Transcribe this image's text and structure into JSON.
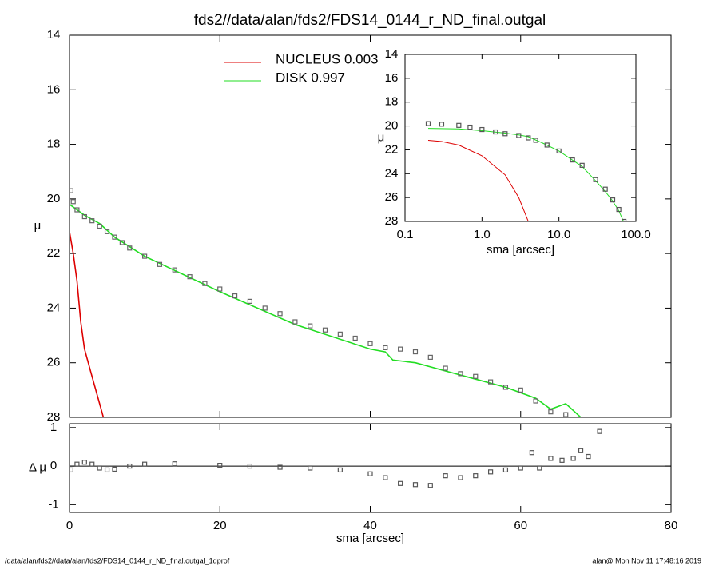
{
  "title": "fds2//data/alan/fds2/FDS14_0144_r_ND_final.outgal",
  "footer_left": "/data/alan/fds2//data/alan/fds2/FDS14_0144_r_ND_final.outgal_1dprof",
  "footer_right": "alan@  Mon Nov 11 17:48:16 2019",
  "chart_data": [
    {
      "type": "line",
      "ylabel": "μ",
      "xlim": [
        0,
        80
      ],
      "ylim": [
        14,
        28
      ],
      "y_inverted": true,
      "yticks": [
        14,
        16,
        18,
        20,
        22,
        24,
        26,
        28
      ],
      "series": [
        {
          "name": "NUCLEUS  0.003",
          "color": "#dd0000",
          "marker": "none",
          "x": [
            0,
            0.5,
            1,
            1.5,
            2,
            3,
            4,
            4.5
          ],
          "values": [
            21.2,
            22,
            23,
            24.5,
            25.5,
            26.5,
            27.5,
            28
          ]
        },
        {
          "name": "DISK  0.997",
          "color": "#22dd22",
          "marker": "none",
          "x": [
            0,
            2,
            4,
            6,
            10,
            20,
            30,
            40,
            42,
            43,
            46,
            50,
            54,
            58,
            62,
            64,
            66,
            68,
            70
          ],
          "values": [
            20.2,
            20.6,
            20.9,
            21.4,
            22.1,
            23.4,
            24.6,
            25.5,
            25.6,
            25.9,
            26.0,
            26.3,
            26.6,
            26.9,
            27.3,
            27.7,
            27.5,
            28.0,
            28.1
          ]
        },
        {
          "color": "#666666",
          "marker": "square",
          "x": [
            0.2,
            0.5,
            1,
            2,
            3,
            4,
            5,
            6,
            7,
            8,
            10,
            12,
            14,
            16,
            18,
            20,
            22,
            24,
            26,
            28,
            30,
            32,
            34,
            36,
            38,
            40,
            42,
            44,
            46,
            48,
            50,
            52,
            54,
            56,
            58,
            60,
            62,
            64,
            66
          ],
          "values": [
            19.7,
            20.1,
            20.4,
            20.65,
            20.8,
            21.0,
            21.2,
            21.4,
            21.6,
            21.8,
            22.1,
            22.4,
            22.6,
            22.85,
            23.1,
            23.3,
            23.55,
            23.75,
            24.0,
            24.2,
            24.5,
            24.65,
            24.8,
            24.95,
            25.1,
            25.3,
            25.45,
            25.5,
            25.6,
            25.8,
            26.2,
            26.4,
            26.5,
            26.7,
            26.9,
            27.0,
            27.4,
            27.8,
            27.9
          ]
        }
      ]
    },
    {
      "type": "line",
      "ylabel": "Δ μ",
      "xlabel": "sma [arcsec]",
      "xlim": [
        0,
        80
      ],
      "xticks": [
        0,
        20,
        40,
        60,
        80
      ],
      "ylim": [
        -1.2,
        1.1
      ],
      "yticks": [
        -1,
        0,
        1
      ],
      "hline": 0,
      "series": [
        {
          "color": "#555555",
          "marker": "square",
          "x": [
            0.2,
            1,
            2,
            3,
            4,
            5,
            6,
            8,
            10,
            14,
            20,
            24,
            28,
            32,
            36,
            40,
            42,
            44,
            46,
            48,
            50,
            52,
            54,
            56,
            58,
            60,
            61.5,
            62.5,
            64,
            65.5,
            67,
            68,
            69,
            70.5
          ],
          "values": [
            -0.1,
            0.05,
            0.1,
            0.05,
            -0.05,
            -0.1,
            -0.08,
            0,
            0.05,
            0.06,
            0.02,
            0,
            -0.03,
            -0.05,
            -0.1,
            -0.2,
            -0.3,
            -0.45,
            -0.48,
            -0.5,
            -0.25,
            -0.3,
            -0.25,
            -0.15,
            -0.1,
            -0.05,
            0.35,
            -0.05,
            0.2,
            0.15,
            0.2,
            0.4,
            0.25,
            0.9
          ]
        }
      ]
    },
    {
      "type": "line",
      "ylabel": "μ",
      "xlabel": "sma [arcsec]",
      "log_x": true,
      "xlim": [
        0.1,
        100
      ],
      "xticks": [
        0.1,
        {
          "value": 1,
          "label": "1.0"
        },
        {
          "value": 10,
          "label": "10.0"
        },
        {
          "value": 100,
          "label": "100.0"
        }
      ],
      "ylim": [
        14,
        28
      ],
      "y_inverted": true,
      "yticks": [
        14,
        16,
        18,
        20,
        22,
        24,
        26,
        28
      ],
      "series": [
        {
          "color": "#dd0000",
          "marker": "none",
          "x": [
            0.2,
            0.3,
            0.5,
            1,
            2,
            3,
            4
          ],
          "values": [
            21.2,
            21.3,
            21.6,
            22.5,
            24.1,
            26.0,
            28.0
          ]
        },
        {
          "color": "#22dd22",
          "marker": "none",
          "x": [
            0.2,
            0.5,
            1,
            2,
            3,
            4,
            6,
            10,
            20,
            30,
            40,
            50,
            60,
            70
          ],
          "values": [
            20.2,
            20.25,
            20.4,
            20.6,
            20.75,
            20.9,
            21.4,
            22.1,
            23.4,
            24.6,
            25.5,
            26.3,
            27.1,
            28.1
          ]
        },
        {
          "color": "#555555",
          "marker": "square",
          "x": [
            0.2,
            0.3,
            0.5,
            0.7,
            1,
            1.5,
            2,
            3,
            4,
            5,
            7,
            10,
            15,
            20,
            30,
            40,
            50,
            60,
            70
          ],
          "values": [
            19.8,
            19.85,
            19.95,
            20.1,
            20.3,
            20.5,
            20.65,
            20.8,
            21.0,
            21.2,
            21.6,
            22.1,
            22.85,
            23.3,
            24.5,
            25.3,
            26.2,
            27.0,
            28.0
          ]
        }
      ]
    }
  ]
}
